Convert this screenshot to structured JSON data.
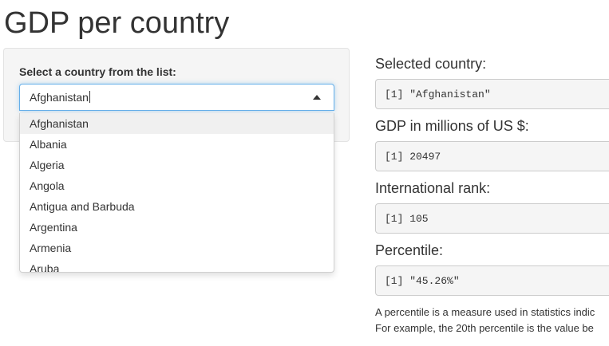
{
  "page": {
    "title": "GDP per country"
  },
  "selector": {
    "label": "Select a country from the list:",
    "value": "Afghanistan",
    "options": [
      "Afghanistan",
      "Albania",
      "Algeria",
      "Angola",
      "Antigua and Barbuda",
      "Argentina",
      "Armenia",
      "Aruba"
    ]
  },
  "outputs": {
    "selected_country": {
      "heading": "Selected country:",
      "value": "[1] \"Afghanistan\""
    },
    "gdp": {
      "heading": "GDP in millions of US $:",
      "value": "[1] 20497"
    },
    "rank": {
      "heading": "International rank:",
      "value": "[1] 105"
    },
    "percentile": {
      "heading": "Percentile:",
      "value": "[1] \"45.26%\""
    }
  },
  "note": {
    "line1": "A percentile is a measure used in statistics indic",
    "line2": "For example, the 20th percentile is the value be"
  }
}
